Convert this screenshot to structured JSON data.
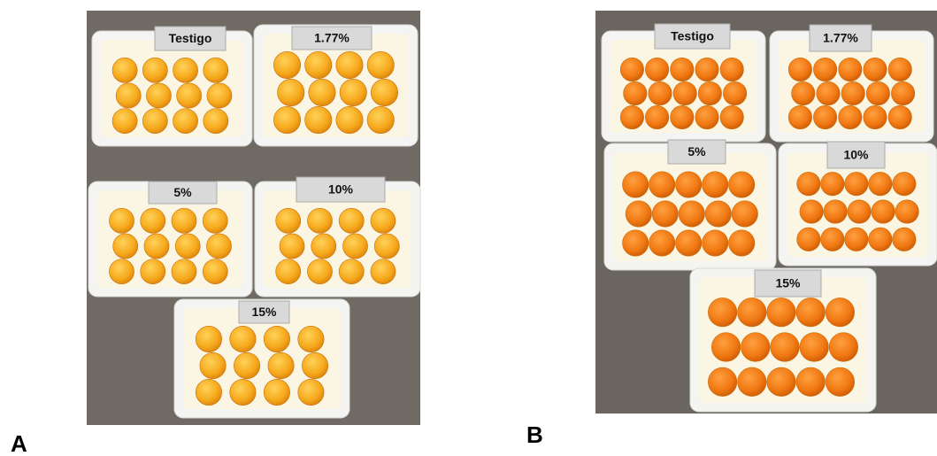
{
  "panels": [
    {
      "label": "A",
      "trays": [
        "Testigo",
        "1.77%",
        "5%",
        "10%",
        "15%"
      ]
    },
    {
      "label": "B",
      "trays": [
        "Testigo",
        "1.77%",
        "5%",
        "10%",
        "15%"
      ]
    }
  ]
}
